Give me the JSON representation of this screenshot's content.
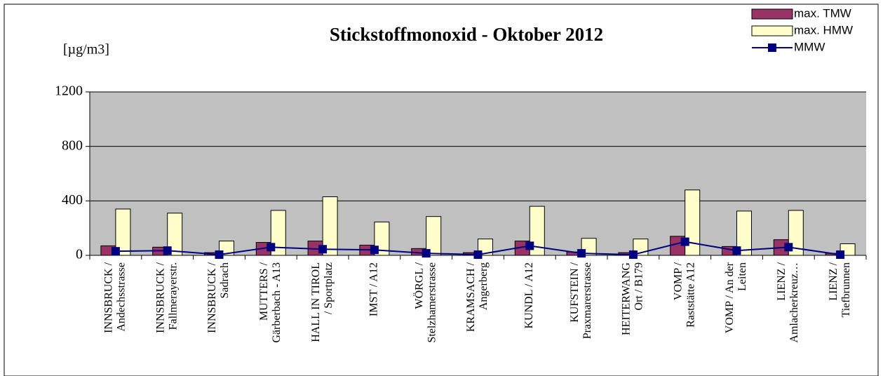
{
  "chart_data": {
    "type": "bar",
    "title": "Stickstoffmonoxid  - Oktober 2012",
    "y_axis_label": "[µg/m3]",
    "categories": [
      [
        "INNSBRUCK /",
        "Andechsstrasse"
      ],
      [
        "INNSBRUCK /",
        "Fallmerayerstr."
      ],
      [
        "INNSBRUCK /",
        "Sadrach"
      ],
      [
        "MUTTERS /",
        "Gärberbach - A13"
      ],
      [
        "HALL IN TIROL",
        "/ Sportplatz"
      ],
      [
        "IMST / A12"
      ],
      [
        "WÖRGL /",
        "Stelzhamerstrasse"
      ],
      [
        "KRAMSACH /",
        "Angerberg"
      ],
      [
        "KUNDL / A12"
      ],
      [
        "KUFSTEIN /",
        "Praxmarerstrasse"
      ],
      [
        "HEITERWANG",
        "Ort / B179"
      ],
      [
        "VOMP /",
        "Raststätte A12"
      ],
      [
        "VOMP / An der",
        "Leiten"
      ],
      [
        "LIENZ /",
        "Amlacherkreuz…"
      ],
      [
        "LIENZ /",
        "Tiefbrunnen"
      ]
    ],
    "series": [
      {
        "name": "max. TMW",
        "type": "bar",
        "color": "#993366",
        "values": [
          70,
          60,
          20,
          95,
          105,
          75,
          50,
          20,
          105,
          25,
          20,
          140,
          65,
          115,
          15
        ]
      },
      {
        "name": "max. HMW",
        "type": "bar",
        "color": "#ffffcc",
        "values": [
          340,
          310,
          105,
          330,
          430,
          245,
          285,
          120,
          360,
          125,
          120,
          480,
          325,
          330,
          85
        ]
      },
      {
        "name": "MMW",
        "type": "line",
        "color": "#000080",
        "values": [
          30,
          35,
          5,
          60,
          45,
          40,
          15,
          5,
          70,
          15,
          5,
          100,
          35,
          60,
          5
        ]
      }
    ],
    "ylim": [
      0,
      1200
    ],
    "yticks": [
      0,
      400,
      800,
      1200
    ],
    "grid": true,
    "legend": "top-right"
  }
}
